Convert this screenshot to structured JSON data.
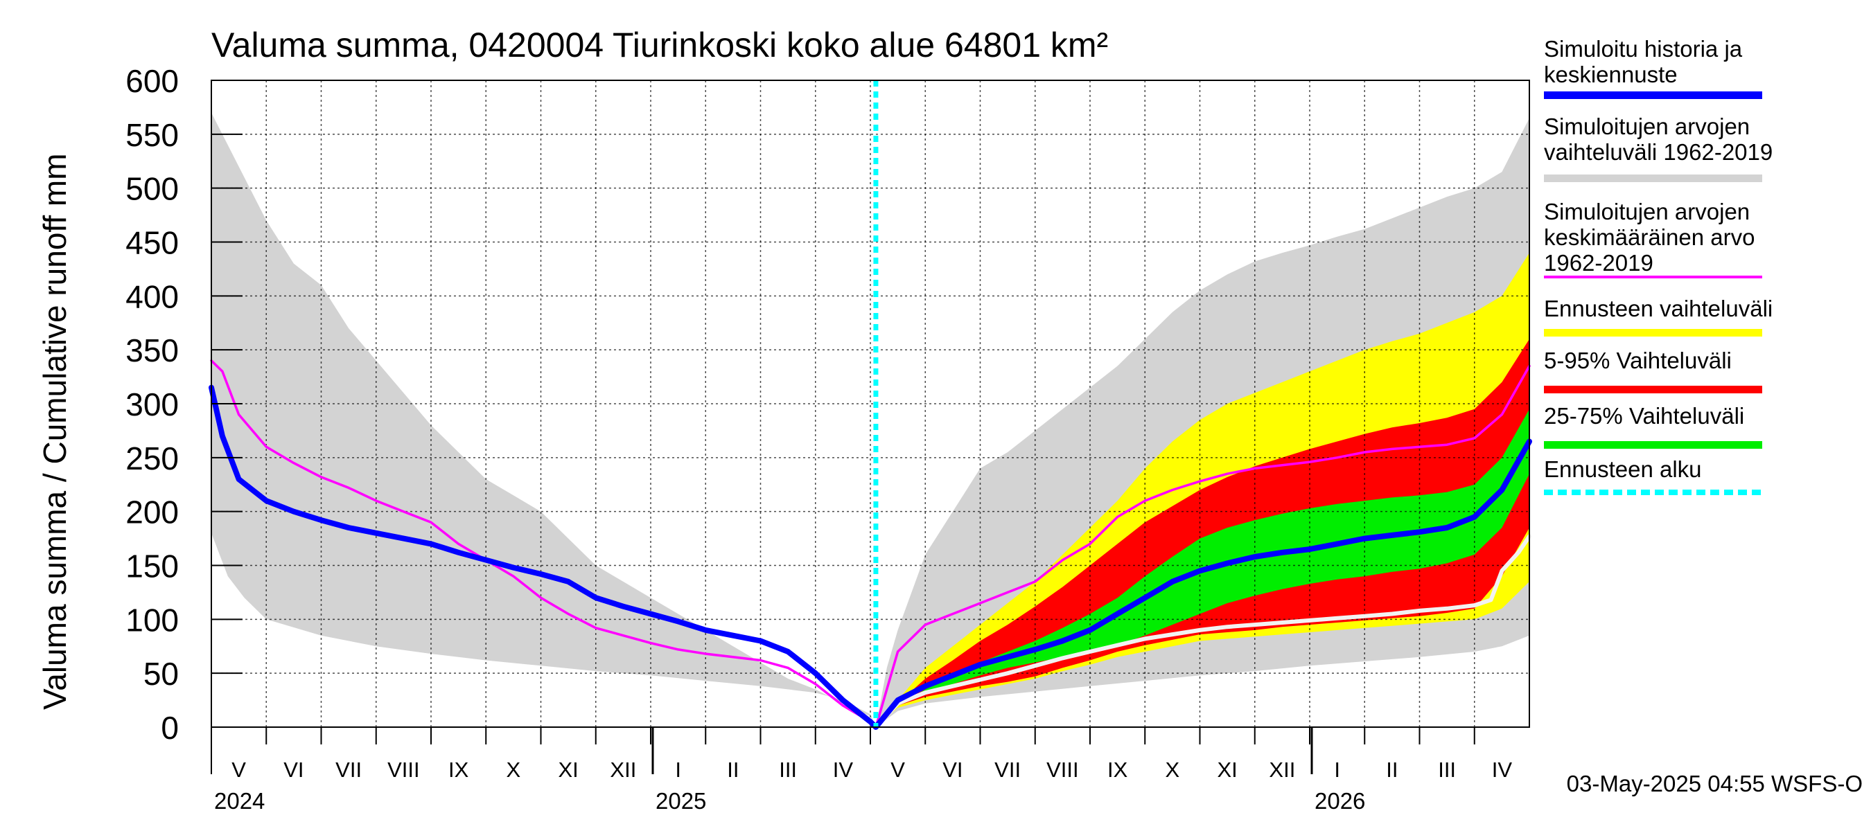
{
  "colors": {
    "history": "#0000ff",
    "history_range": "#d3d3d3",
    "mean": "#ff00ff",
    "forecast_range": "#ffff00",
    "p5_95": "#ff0000",
    "p25_75": "#00ee00",
    "forecast_start": "#00ffff",
    "mean_forecast_white": "#f2f2f2"
  },
  "chart_data": {
    "type": "area",
    "title": "Valuma summa, 0420004 Tiurinkoski koko alue 64801 km²",
    "ylabel": "Valuma summa / Cumulative runoff    mm",
    "ylim": [
      0,
      600
    ],
    "yticks": [
      0,
      50,
      100,
      150,
      200,
      250,
      300,
      350,
      400,
      450,
      500,
      550,
      600
    ],
    "x_unit": "months since 2024-04-01",
    "xlim": [
      1,
      25
    ],
    "forecast_start_x": 13.1,
    "month_labels": [
      "V",
      "VI",
      "VII",
      "VIII",
      "IX",
      "X",
      "XI",
      "XII",
      "I",
      "II",
      "III",
      "IV",
      "V",
      "VI",
      "VII",
      "VIII",
      "IX",
      "X",
      "XI",
      "XII",
      "I",
      "II",
      "III",
      "IV"
    ],
    "year_labels": [
      {
        "label": "2024",
        "x": 1
      },
      {
        "label": "2025",
        "x": 9
      },
      {
        "label": "2026",
        "x": 21
      }
    ],
    "timestamp": "03-May-2025 04:55 WSFS-O",
    "series": [
      {
        "name": "Simuloitujen arvojen vaihteluväli 1962-2019 (max)",
        "key": "range_max",
        "x": [
          1,
          1.5,
          2,
          2.5,
          3,
          3.5,
          4,
          4.5,
          5,
          5.5,
          6,
          6.5,
          7,
          7.5,
          8,
          8.5,
          9,
          9.5,
          10,
          10.5,
          11,
          11.5,
          12,
          12.5,
          13,
          13.1,
          13.3,
          13.5,
          14,
          14.5,
          15,
          15.5,
          16,
          16.5,
          17,
          17.5,
          18,
          18.5,
          19,
          19.5,
          20,
          20.5,
          21,
          21.5,
          22,
          22.5,
          23,
          23.5,
          24,
          24.5,
          25
        ],
        "values": [
          570,
          520,
          470,
          430,
          410,
          370,
          340,
          310,
          280,
          255,
          230,
          215,
          200,
          175,
          150,
          135,
          120,
          105,
          90,
          75,
          60,
          45,
          35,
          22,
          10,
          0,
          55,
          90,
          160,
          200,
          240,
          255,
          275,
          295,
          315,
          335,
          360,
          385,
          405,
          420,
          432,
          440,
          447,
          455,
          462,
          472,
          482,
          492,
          500,
          515,
          565
        ]
      },
      {
        "name": "Simuloitujen arvojen vaihteluväli 1962-2019 (min)",
        "key": "range_min",
        "x": [
          1,
          1.3,
          1.6,
          2,
          3,
          4,
          5,
          6,
          7,
          8,
          9,
          10,
          11,
          12,
          12.5,
          13,
          13.1,
          13.5,
          14,
          15,
          16,
          17,
          18,
          19,
          20,
          21,
          22,
          23,
          24,
          24.5,
          25
        ],
        "values": [
          180,
          140,
          120,
          100,
          85,
          75,
          68,
          62,
          57,
          52,
          48,
          43,
          38,
          32,
          25,
          12,
          0,
          15,
          22,
          28,
          33,
          38,
          43,
          48,
          52,
          57,
          61,
          65,
          70,
          75,
          85
        ]
      },
      {
        "name": "Ennusteen vaihteluväli (max)",
        "key": "fc_max",
        "x": [
          13.1,
          13.5,
          14,
          14.5,
          15,
          15.5,
          16,
          16.5,
          17,
          17.5,
          18,
          18.5,
          19,
          19.5,
          20,
          20.5,
          21,
          21.5,
          22,
          22.5,
          23,
          23.5,
          24,
          24.5,
          25
        ],
        "values": [
          0,
          25,
          55,
          75,
          95,
          115,
          135,
          160,
          185,
          210,
          240,
          265,
          285,
          300,
          310,
          320,
          330,
          340,
          350,
          358,
          365,
          375,
          385,
          400,
          440
        ]
      },
      {
        "name": "Ennusteen vaihteluväli (min)",
        "key": "fc_min",
        "x": [
          13.1,
          13.5,
          14,
          14.5,
          15,
          15.5,
          16,
          16.5,
          17,
          17.5,
          18,
          18.5,
          19,
          19.5,
          20,
          20.5,
          21,
          21.5,
          22,
          22.5,
          23,
          23.5,
          24,
          24.5,
          25
        ],
        "values": [
          0,
          18,
          25,
          30,
          35,
          40,
          45,
          52,
          58,
          65,
          70,
          75,
          80,
          82,
          84,
          86,
          88,
          90,
          92,
          94,
          96,
          98,
          100,
          110,
          135
        ]
      },
      {
        "name": "5-95% Vaihteluväli (upper)",
        "key": "p95",
        "x": [
          13.1,
          13.5,
          14,
          14.5,
          15,
          15.5,
          16,
          16.5,
          17,
          17.5,
          18,
          18.5,
          19,
          19.5,
          20,
          20.5,
          21,
          21.5,
          22,
          22.5,
          23,
          23.5,
          24,
          24.5,
          25
        ],
        "values": [
          0,
          22,
          45,
          62,
          80,
          95,
          112,
          130,
          150,
          170,
          190,
          205,
          220,
          232,
          242,
          250,
          258,
          265,
          272,
          278,
          282,
          287,
          295,
          320,
          360
        ]
      },
      {
        "name": "5-95% Vaihteluväli (lower)",
        "key": "p5",
        "x": [
          13.1,
          13.5,
          14,
          14.5,
          15,
          15.5,
          16,
          16.5,
          17,
          17.5,
          18,
          18.5,
          19,
          19.5,
          20,
          20.5,
          21,
          21.5,
          22,
          22.5,
          23,
          23.5,
          24,
          24.5,
          25
        ],
        "values": [
          0,
          20,
          28,
          33,
          38,
          42,
          47,
          55,
          62,
          70,
          76,
          81,
          86,
          88,
          90,
          93,
          95,
          97,
          99,
          101,
          103,
          106,
          110,
          140,
          185
        ]
      },
      {
        "name": "25-75% Vaihteluväli (upper)",
        "key": "p75",
        "x": [
          13.1,
          13.5,
          14,
          14.5,
          15,
          15.5,
          16,
          16.5,
          17,
          17.5,
          18,
          18.5,
          19,
          19.5,
          20,
          20.5,
          21,
          21.5,
          22,
          22.5,
          23,
          23.5,
          24,
          24.5,
          25
        ],
        "values": [
          0,
          20,
          35,
          48,
          60,
          70,
          80,
          92,
          105,
          120,
          140,
          158,
          175,
          185,
          192,
          198,
          203,
          207,
          210,
          213,
          215,
          218,
          225,
          250,
          295
        ]
      },
      {
        "name": "25-75% Vaihteluväli (lower)",
        "key": "p25",
        "x": [
          13.1,
          13.5,
          14,
          14.5,
          15,
          15.5,
          16,
          16.5,
          17,
          17.5,
          18,
          18.5,
          19,
          19.5,
          20,
          20.5,
          21,
          21.5,
          22,
          22.5,
          23,
          23.5,
          24,
          24.5,
          25
        ],
        "values": [
          0,
          20,
          32,
          40,
          48,
          55,
          60,
          65,
          70,
          76,
          85,
          95,
          105,
          115,
          122,
          128,
          133,
          137,
          140,
          144,
          147,
          152,
          160,
          185,
          235
        ]
      },
      {
        "name": "Simuloitujen arvojen keskimääräinen arvo 1962-2019",
        "key": "mean",
        "x": [
          1,
          1.2,
          1.5,
          2,
          2.5,
          3,
          3.5,
          4,
          4.5,
          5,
          5.5,
          6,
          6.5,
          7,
          7.5,
          8,
          8.5,
          9,
          9.5,
          10,
          10.5,
          11,
          11.5,
          12,
          12.5,
          13,
          13.1,
          13.5,
          14,
          14.5,
          15,
          15.5,
          16,
          16.5,
          17,
          17.5,
          18,
          18.5,
          19,
          19.5,
          20,
          20.5,
          21,
          21.5,
          22,
          22.5,
          23,
          23.5,
          24,
          24.5,
          25
        ],
        "values": [
          340,
          330,
          290,
          260,
          245,
          232,
          222,
          210,
          200,
          190,
          170,
          155,
          140,
          120,
          105,
          92,
          85,
          78,
          72,
          68,
          65,
          62,
          55,
          40,
          20,
          5,
          0,
          70,
          95,
          105,
          115,
          125,
          135,
          155,
          170,
          195,
          210,
          220,
          228,
          235,
          240,
          243,
          246,
          250,
          255,
          258,
          260,
          262,
          268,
          290,
          335
        ]
      },
      {
        "name": "Simuloitu historia ja keskiennuste",
        "key": "history",
        "x": [
          1,
          1.2,
          1.5,
          2,
          2.5,
          3,
          3.5,
          4,
          4.5,
          5,
          5.5,
          6,
          6.5,
          7,
          7.5,
          8,
          8.5,
          9,
          9.5,
          10,
          10.5,
          11,
          11.5,
          12,
          12.5,
          13,
          13.1,
          13.5,
          14,
          14.5,
          15,
          15.5,
          16,
          16.5,
          17,
          17.5,
          18,
          18.5,
          19,
          19.5,
          20,
          20.5,
          21,
          21.5,
          22,
          22.5,
          23,
          23.5,
          24,
          24.5,
          25
        ],
        "values": [
          315,
          270,
          230,
          210,
          200,
          192,
          185,
          180,
          175,
          170,
          162,
          155,
          148,
          142,
          135,
          120,
          112,
          105,
          98,
          90,
          85,
          80,
          70,
          50,
          25,
          5,
          0,
          25,
          38,
          48,
          58,
          65,
          72,
          80,
          90,
          105,
          120,
          135,
          145,
          152,
          158,
          162,
          165,
          170,
          175,
          178,
          181,
          185,
          195,
          220,
          265
        ]
      },
      {
        "name": "Mean forecast (white)",
        "key": "white",
        "x": [
          13.1,
          13.5,
          14,
          14.5,
          15,
          15.5,
          16,
          16.5,
          17,
          17.5,
          18,
          18.5,
          19,
          19.5,
          20,
          20.5,
          21,
          21.5,
          22,
          22.5,
          23,
          23.5,
          24,
          24.3,
          24.5,
          24.8,
          25
        ],
        "values": [
          0,
          22,
          32,
          38,
          44,
          50,
          57,
          64,
          70,
          76,
          82,
          86,
          90,
          93,
          95,
          97,
          99,
          101,
          103,
          105,
          108,
          110,
          113,
          118,
          145,
          162,
          177
        ]
      }
    ]
  },
  "legend": [
    {
      "label": "Simuloitu historia ja\nkeskiennuste",
      "key": "history"
    },
    {
      "label": "Simuloitujen arvojen\nvaihteluväli 1962-2019",
      "key": "history_range"
    },
    {
      "label": "Simuloitujen arvojen\nkeskimääräinen arvo\n   1962-2019",
      "key": "mean"
    },
    {
      "label": "Ennusteen vaihteluväli",
      "key": "forecast_range"
    },
    {
      "label": "5-95% Vaihteluväli",
      "key": "p5_95"
    },
    {
      "label": "25-75% Vaihteluväli",
      "key": "p25_75"
    },
    {
      "label": "Ennusteen alku",
      "key": "forecast_start"
    }
  ]
}
